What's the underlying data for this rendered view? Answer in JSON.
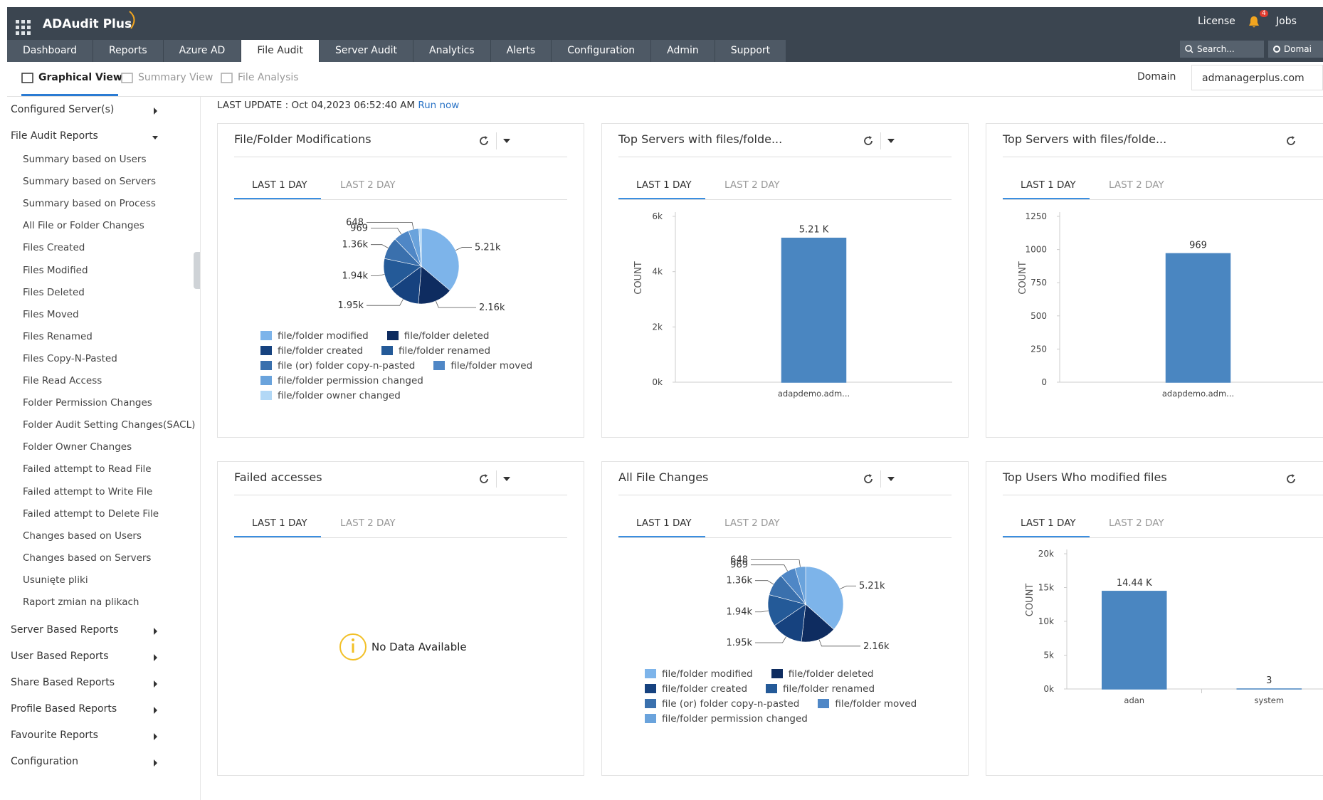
{
  "header": {
    "brand": "ADAudit Plus",
    "links": [
      "License",
      "Jobs"
    ],
    "notification_count": "4",
    "search": "Search...",
    "domain_button": "Domai"
  },
  "nav": {
    "tabs": [
      "Dashboard",
      "Reports",
      "Azure AD",
      "File Audit",
      "Server Audit",
      "Analytics",
      "Alerts",
      "Configuration",
      "Admin",
      "Support"
    ],
    "active": 3
  },
  "subnav": {
    "tabs": [
      "Graphical View",
      "Summary View",
      "File Analysis"
    ],
    "active": 0,
    "domain_label": "Domain",
    "domain_value": "admanagerplus.com"
  },
  "sidebar": {
    "sections": [
      {
        "label": "Configured Server(s)",
        "expanded": false,
        "items": []
      },
      {
        "label": "File Audit Reports",
        "expanded": true,
        "items": [
          "Summary based on Users",
          "Summary based on Servers",
          "Summary based on Process",
          "All File or Folder Changes",
          "Files Created",
          "Files Modified",
          "Files Deleted",
          "Files Moved",
          "Files Renamed",
          "Files Copy-N-Pasted",
          "File Read Access",
          "Folder Permission Changes",
          "Folder Audit Setting Changes(SACL)",
          "Folder Owner Changes",
          "Failed attempt to Read File",
          "Failed attempt to Write File",
          "Failed attempt to Delete File",
          "Changes based on Users",
          "Changes based on Servers",
          "Usunięte pliki",
          "Raport zmian na plikach"
        ]
      },
      {
        "label": "Server Based Reports",
        "expanded": false,
        "items": []
      },
      {
        "label": "User Based Reports",
        "expanded": false,
        "items": []
      },
      {
        "label": "Share Based Reports",
        "expanded": false,
        "items": []
      },
      {
        "label": "Profile Based Reports",
        "expanded": false,
        "items": []
      },
      {
        "label": "Favourite Reports",
        "expanded": false,
        "items": []
      },
      {
        "label": "Configuration",
        "expanded": false,
        "items": []
      }
    ]
  },
  "last_update": {
    "text": "LAST UPDATE : Oct 04,2023 06:52:40 AM",
    "link": "Run now"
  },
  "widgets": [
    {
      "title": "File/Folder Modifications",
      "tabs": [
        "LAST 1 DAY",
        "LAST 2 DAY"
      ],
      "active_tab": 0,
      "menu": true,
      "chart": {
        "type": "pie",
        "categories": [
          "file/folder modified",
          "file/folder deleted",
          "file/folder created",
          "file/folder renamed",
          "file (or) folder copy-n-pasted",
          "file/folder moved",
          "file/folder permission changed",
          "file/folder owner changed"
        ],
        "values": [
          5210,
          2160,
          1950,
          1940,
          1360,
          969,
          648,
          150
        ],
        "value_labels": [
          "5.21k",
          "2.16k",
          "1.95k",
          "1.94k",
          "1.36k",
          "969",
          "648",
          null
        ],
        "colors": [
          "#7db4ea",
          "#0e2c60",
          "#16427f",
          "#245a98",
          "#3a70ad",
          "#4f87c6",
          "#6aa3dc",
          "#b2d8f6"
        ]
      }
    },
    {
      "title": "Top Servers with files/folde...",
      "tabs": [
        "LAST 1 DAY",
        "LAST 2 DAY"
      ],
      "active_tab": 0,
      "menu": true,
      "chart": {
        "type": "bar",
        "categories": [
          "adapdemo.adm..."
        ],
        "values": [
          5210
        ],
        "value_labels": [
          "5.21 K"
        ],
        "y_label": "COUNT",
        "ylim": [
          0,
          6000
        ],
        "yticks": [
          {
            "value": 0,
            "label": "0k"
          },
          {
            "value": 2000,
            "label": "2k"
          },
          {
            "value": 4000,
            "label": "4k"
          },
          {
            "value": 6000,
            "label": "6k"
          }
        ],
        "color": "#4a86c1"
      }
    },
    {
      "title": "Top Servers with files/folde...",
      "tabs": [
        "LAST 1 DAY",
        "LAST 2 DAY"
      ],
      "active_tab": 0,
      "menu": false,
      "chart": {
        "type": "bar",
        "categories": [
          "adapdemo.adm..."
        ],
        "values": [
          969
        ],
        "value_labels": [
          "969"
        ],
        "y_label": "COUNT",
        "ylim": [
          0,
          1250
        ],
        "yticks": [
          0,
          250,
          500,
          750,
          1000,
          1250
        ],
        "color": "#4a86c1"
      }
    },
    {
      "title": "Failed accesses",
      "tabs": [
        "LAST 1 DAY",
        "LAST 2 DAY"
      ],
      "active_tab": 0,
      "menu": true,
      "chart": {
        "type": "none",
        "message": "No Data Available"
      }
    },
    {
      "title": "All File Changes",
      "tabs": [
        "LAST 1 DAY",
        "LAST 2 DAY"
      ],
      "active_tab": 0,
      "menu": true,
      "chart": {
        "type": "pie",
        "categories": [
          "file/folder modified",
          "file/folder deleted",
          "file/folder created",
          "file/folder renamed",
          "file (or) folder copy-n-pasted",
          "file/folder moved",
          "file/folder permission changed"
        ],
        "values": [
          5210,
          2160,
          1950,
          1940,
          1360,
          969,
          648
        ],
        "value_labels": [
          "5.21k",
          "2.16k",
          "1.95k",
          "1.94k",
          "1.36k",
          "969",
          "648"
        ],
        "colors": [
          "#7db4ea",
          "#0e2c60",
          "#16427f",
          "#245a98",
          "#3a70ad",
          "#4f87c6",
          "#6aa3dc"
        ]
      }
    },
    {
      "title": "Top Users Who modified files",
      "tabs": [
        "LAST 1 DAY",
        "LAST 2 DAY"
      ],
      "active_tab": 0,
      "menu": false,
      "chart": {
        "type": "bar",
        "categories": [
          "adan",
          "system"
        ],
        "values": [
          14440,
          3
        ],
        "value_labels": [
          "14.44 K",
          "3"
        ],
        "y_label": "COUNT",
        "ylim": [
          0,
          20000
        ],
        "yticks": [
          {
            "value": 0,
            "label": "0k"
          },
          {
            "value": 5000,
            "label": "5k"
          },
          {
            "value": 10000,
            "label": "10k"
          },
          {
            "value": 15000,
            "label": "15k"
          },
          {
            "value": 20000,
            "label": "20k"
          }
        ],
        "color": "#4a86c1"
      }
    }
  ]
}
